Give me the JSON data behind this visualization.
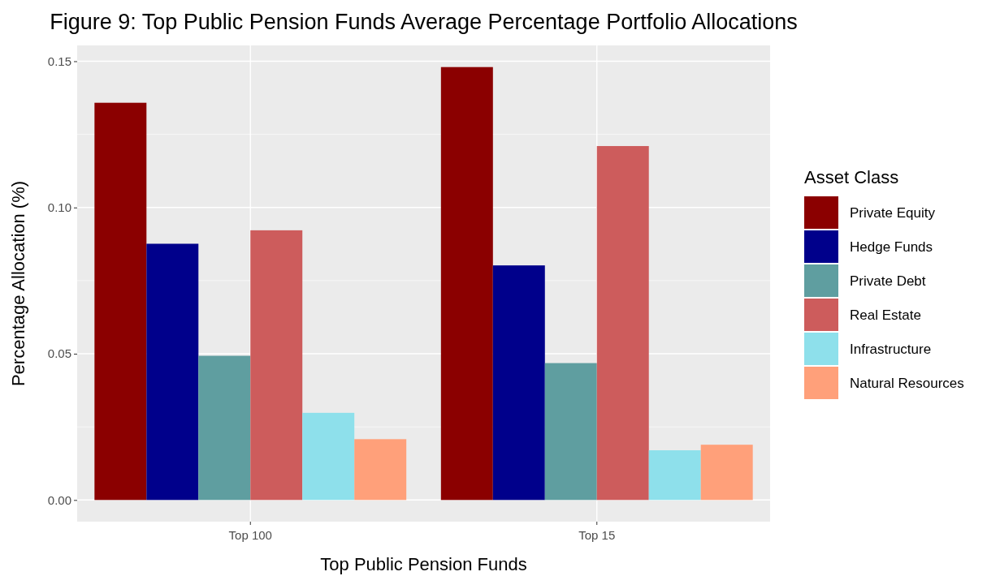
{
  "chart_data": {
    "type": "bar",
    "title": "Figure 9: Top Public Pension Funds Average Percentage Portfolio Allocations",
    "xlabel": "Top Public Pension Funds",
    "ylabel": "Percentage Allocation (%)",
    "legend_title": "Asset Class",
    "categories": [
      "Top 100",
      "Top 15"
    ],
    "series": [
      {
        "name": "Private Equity",
        "color": "#8b0000",
        "values": [
          0.1358,
          0.148
        ]
      },
      {
        "name": "Hedge Funds",
        "color": "#00008b",
        "values": [
          0.0876,
          0.0802
        ]
      },
      {
        "name": "Private Debt",
        "color": "#5f9ea0",
        "values": [
          0.0493,
          0.0468
        ]
      },
      {
        "name": "Real Estate",
        "color": "#cd5c5c",
        "values": [
          0.0922,
          0.121
        ]
      },
      {
        "name": "Infrastructure",
        "color": "#8ee0eb",
        "values": [
          0.0298,
          0.017
        ]
      },
      {
        "name": "Natural Resources",
        "color": "#ffa07a",
        "values": [
          0.0208,
          0.0189
        ]
      }
    ],
    "ylim": [
      -0.0074,
      0.1554
    ],
    "yticks": [
      {
        "value": 0,
        "label": "0.00"
      },
      {
        "value": 0.05,
        "label": "0.05"
      },
      {
        "value": 0.1,
        "label": "0.10"
      },
      {
        "value": 0.15,
        "label": "0.15"
      }
    ],
    "grid": true,
    "legend": "right"
  }
}
